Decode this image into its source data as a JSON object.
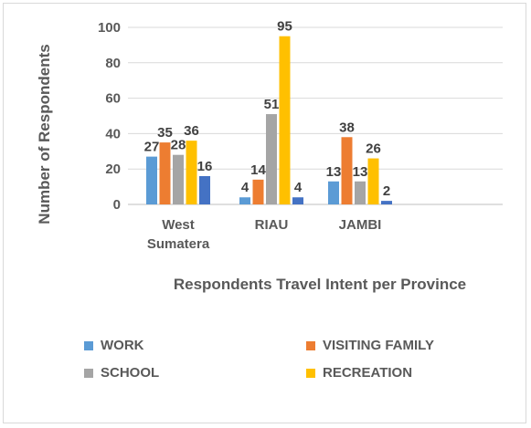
{
  "chart_data": {
    "type": "bar",
    "xlabel": "Respondents Travel Intent per Province",
    "ylabel": "Number of Respondents",
    "ylim": [
      0,
      100
    ],
    "yticks": [
      0,
      20,
      40,
      60,
      80,
      100
    ],
    "grid": true,
    "legend_position": "bottom",
    "categories": [
      "West Sumatera",
      "RIAU",
      "JAMBI"
    ],
    "category_lines": [
      [
        "West",
        "Sumatera"
      ],
      [
        "RIAU"
      ],
      [
        "JAMBI"
      ]
    ],
    "series": [
      {
        "name": "WORK",
        "color": "#5b9bd5",
        "values": [
          27,
          4,
          13
        ]
      },
      {
        "name": "VISITING FAMILY",
        "color": "#ed7d31",
        "values": [
          35,
          14,
          38
        ]
      },
      {
        "name": "SCHOOL",
        "color": "#a5a5a5",
        "values": [
          28,
          51,
          13
        ]
      },
      {
        "name": "RECREATION",
        "color": "#ffc000",
        "values": [
          36,
          95,
          26
        ]
      },
      {
        "color": "#4472c4",
        "values": [
          16,
          4,
          2
        ]
      }
    ]
  }
}
